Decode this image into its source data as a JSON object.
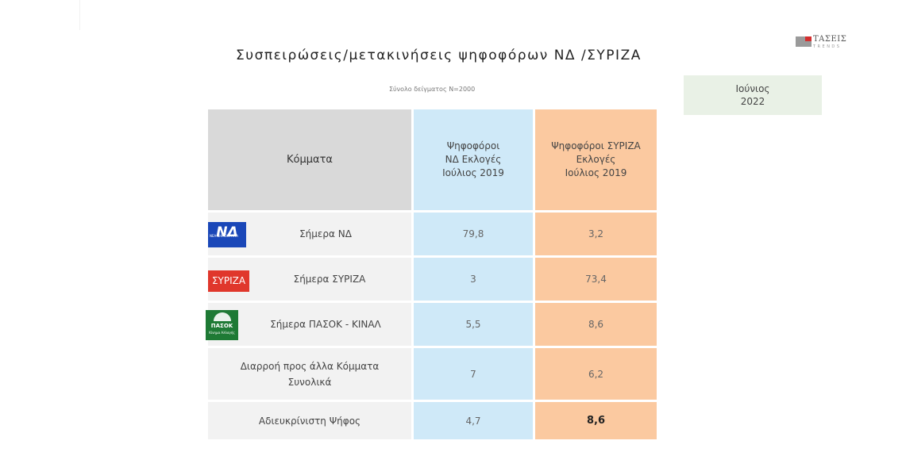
{
  "title": "Συσπειρώσεις/μετακινήσεις ψηφοφόρων ΝΔ /ΣΥΡΙΖΑ",
  "subtitle": "Σύνολο δείγματος Ν=2000",
  "brand": {
    "name": "ΤΑΣΕΙΣ",
    "sub": "TRENDS"
  },
  "date": {
    "month": "Ιούνιος",
    "year": "2022"
  },
  "logos": {
    "nd": "ΝΔ",
    "nd_sub": "ΝΕΑ ΔΗΜΟΚΡΑΤΙΑ",
    "syriza": "ΣΥΡΙΖΑ",
    "pasok": "ΠΑΣΟΚ",
    "pasok_sub": "Κίνημα Αλλαγής"
  },
  "colors": {
    "header_gray": "#d9d9d9",
    "nd_column": "#cfe9f8",
    "syriza_column": "#fbc9a0",
    "label_column": "#f2f2f2"
  },
  "chart_data": {
    "type": "table",
    "columns": [
      "Κόμματα",
      "Ψηφοφόροι ΝΔ Εκλογές Ιούλιος 2019",
      "Ψηφοφόροι ΣΥΡΙΖΑ Εκλογές Ιούλιος 2019"
    ],
    "header": {
      "party": "Κόμματα",
      "nd": [
        "Ψηφοφόροι",
        "ΝΔ Εκλογές",
        "Ιούλιος 2019"
      ],
      "syriza": [
        "Ψηφοφόροι ΣΥΡΙΖΑ",
        "Εκλογές",
        "Ιούλιος 2019"
      ]
    },
    "rows": [
      {
        "label": "Σήμερα ΝΔ",
        "nd": "79,8",
        "syriza": "3,2"
      },
      {
        "label": "Σήμερα ΣΥΡΙΖΑ",
        "nd": "3",
        "syriza": "73,4"
      },
      {
        "label": "Σήμερα ΠΑΣΟΚ - ΚΙΝΑΛ",
        "nd": "5,5",
        "syriza": "8,6"
      },
      {
        "label": "Διαρροή προς άλλα Κόμματα Συνολικά",
        "label_lines": [
          "Διαρροή προς άλλα Κόμματα",
          "Συνολικά"
        ],
        "nd": "7",
        "syriza": "6,2"
      },
      {
        "label": "Αδιευκρίνιστη Ψήφος",
        "nd": "4,7",
        "syriza": "8,6"
      }
    ]
  }
}
